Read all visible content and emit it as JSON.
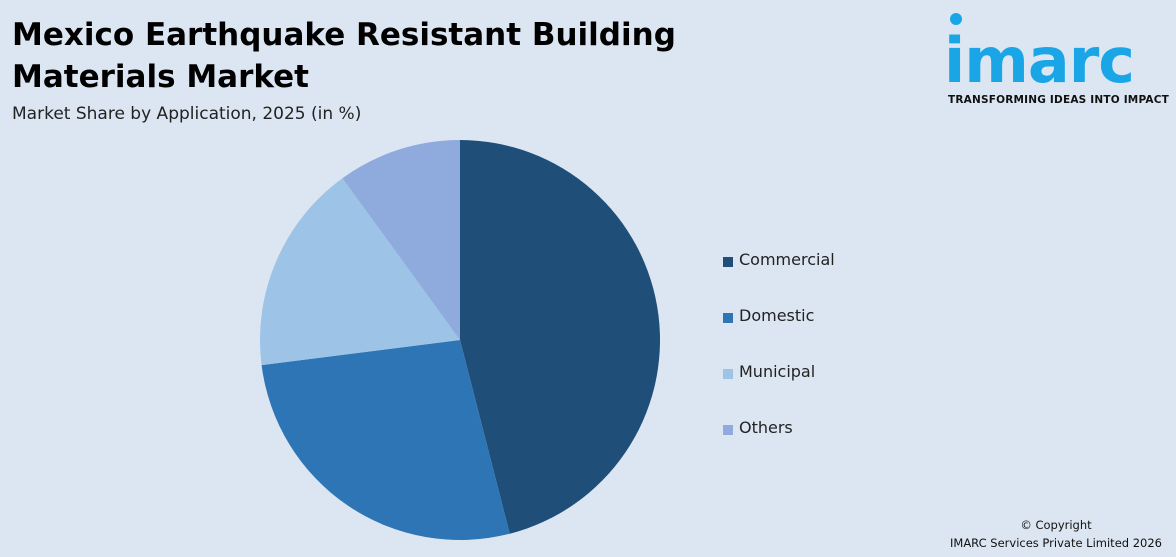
{
  "header": {
    "title": "Mexico Earthquake Resistant Building Materials Market",
    "subtitle": "Market Share by Application, 2025 (in %)"
  },
  "logo": {
    "word": "imarc",
    "tagline": "TRANSFORMING IDEAS INTO IMPACT",
    "color": "#1aa6e6"
  },
  "chart_data": {
    "type": "pie",
    "title": "Mexico Earthquake Resistant Building Materials Market",
    "subtitle": "Market Share by Application, 2025 (in %)",
    "categories": [
      "Commercial",
      "Domestic",
      "Municipal",
      "Others"
    ],
    "values": [
      46,
      27,
      17,
      10
    ],
    "colors": [
      "#1f4e79",
      "#2e75b6",
      "#9dc3e6",
      "#8faadc"
    ],
    "legend_position": "right",
    "start_angle_deg": 0,
    "direction": "clockwise"
  },
  "footer": {
    "copyright_line1": "© Copyright",
    "copyright_line2": "IMARC Services Private Limited 2026"
  }
}
